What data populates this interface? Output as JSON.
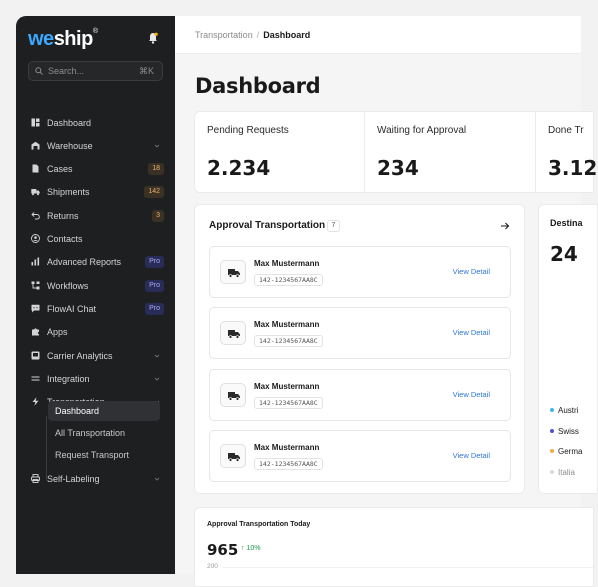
{
  "logo": {
    "prefix": "we",
    "suffix": "ship",
    "mark": "®"
  },
  "search": {
    "placeholder": "Search...",
    "shortcut": "⌘K"
  },
  "sidebar": {
    "items": [
      {
        "label": "Dashboard",
        "icon": "dashboard-icon"
      },
      {
        "label": "Warehouse",
        "icon": "warehouse-icon",
        "chevron": true
      },
      {
        "label": "Cases",
        "icon": "document-icon",
        "badge": "18"
      },
      {
        "label": "Shipments",
        "icon": "truck-icon",
        "badge": "142"
      },
      {
        "label": "Returns",
        "icon": "return-icon",
        "badge": "3"
      },
      {
        "label": "Contacts",
        "icon": "contact-icon"
      },
      {
        "label": "Advanced Reports",
        "icon": "bar-chart-icon",
        "badge": "Pro"
      },
      {
        "label": "Workflows",
        "icon": "workflow-icon",
        "badge": "Pro"
      },
      {
        "label": "FlowAI Chat",
        "icon": "chat-icon",
        "badge": "Pro"
      },
      {
        "label": "Apps",
        "icon": "puzzle-icon"
      },
      {
        "label": "Carrier Analytics",
        "icon": "analytics-icon",
        "chevron": true
      },
      {
        "label": "Integration",
        "icon": "integration-icon",
        "chevron": true
      },
      {
        "label": "Transportation",
        "icon": "bolt-icon",
        "chevron": true
      }
    ],
    "sub_items": [
      {
        "label": "Dashboard",
        "active": true
      },
      {
        "label": "All Transportation"
      },
      {
        "label": "Request Transport"
      }
    ],
    "last_item": {
      "label": "Self-Labeling",
      "icon": "printer-icon",
      "chevron": true
    }
  },
  "breadcrumb": {
    "parent": "Transportation",
    "separator": "/",
    "current": "Dashboard"
  },
  "page_title": "Dashboard",
  "stats": [
    {
      "label": "Pending Requests",
      "value": "2.234"
    },
    {
      "label": "Waiting for Approval",
      "value": "234"
    },
    {
      "label": "Done Tr",
      "value": "3.12"
    }
  ],
  "approval": {
    "title": "Approval Transportation",
    "count": "7",
    "requests": [
      {
        "name": "Max Mustermann",
        "code": "142-1234567AA8C",
        "action": "View Detail"
      },
      {
        "name": "Max Mustermann",
        "code": "142-1234567AA8C",
        "action": "View Detail"
      },
      {
        "name": "Max Mustermann",
        "code": "142-1234567AA8C",
        "action": "View Detail"
      },
      {
        "name": "Max Mustermann",
        "code": "142-1234567AA8C",
        "action": "View Detail"
      }
    ]
  },
  "destination": {
    "title": "Destina",
    "value": "24",
    "legend": [
      {
        "label": "Austri",
        "color": "#3fb6e8"
      },
      {
        "label": "Swiss",
        "color": "#4e56c9"
      },
      {
        "label": "Germa",
        "color": "#f0a94a"
      },
      {
        "label": "Italia",
        "color": "#d9d9d9"
      }
    ]
  },
  "today": {
    "title": "Approval Transportation Today",
    "value": "965",
    "trend": "↑ 10%",
    "axis_top": "200"
  },
  "colors": {
    "sidebar_bg": "#1e1f21",
    "accent_link": "#2f77d0",
    "trend_up": "#1a9a4a",
    "pro_badge": "#2a2c58"
  }
}
